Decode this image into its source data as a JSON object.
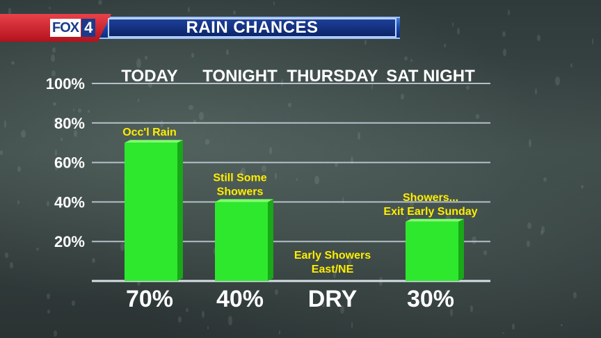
{
  "header": {
    "logo_fox": "FOX",
    "logo_num": "4",
    "title": "RAIN CHANCES"
  },
  "colors": {
    "bar": "#2ee82e",
    "bar_top": "#7dff6a",
    "bar_side": "#18a818",
    "note": "#ffee00",
    "banner_blue": "#1846a8",
    "banner_red": "#b3121d"
  },
  "chart_data": {
    "type": "bar",
    "title": "RAIN CHANCES",
    "categories": [
      "Today",
      "Tonight",
      "Thursday",
      "Sat Night"
    ],
    "values": [
      70,
      40,
      0,
      30
    ],
    "value_labels": [
      "70%",
      "40%",
      "DRY",
      "30%"
    ],
    "annotations": [
      [
        "Occ'l Rain"
      ],
      [
        "Still Some",
        "Showers"
      ],
      [
        "Early Showers",
        "East/NE"
      ],
      [
        "Showers...",
        "Exit Early Sunday"
      ]
    ],
    "ylim": [
      0,
      100
    ],
    "yticks": [
      20,
      40,
      60,
      80,
      100
    ],
    "ytick_labels": [
      "20%",
      "40%",
      "60%",
      "80%",
      "100%"
    ],
    "grid": true
  }
}
